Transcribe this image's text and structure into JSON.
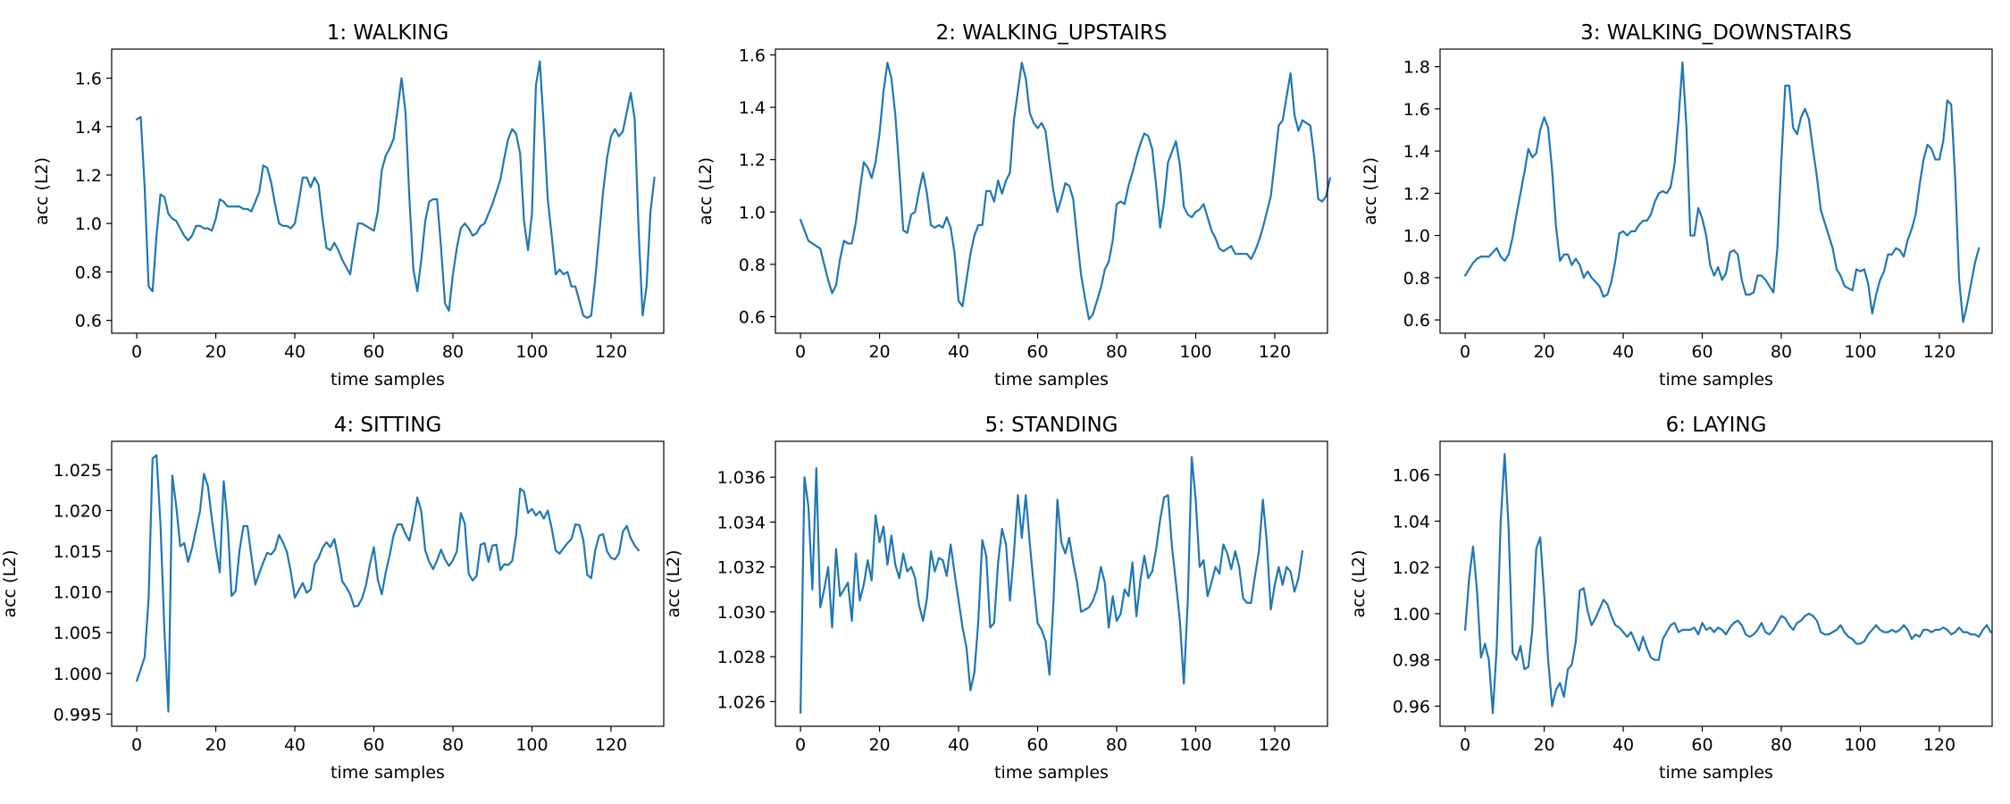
{
  "figure": {
    "line_color": "#1f77b4",
    "background": "#ffffff"
  },
  "chart_data": [
    {
      "type": "line",
      "title": "1: WALKING",
      "xlabel": "time samples",
      "ylabel": "acc (L2)",
      "xlim": [
        -6.35,
        133.35
      ],
      "ylim": [
        0.547,
        1.72
      ],
      "xticks": [
        0,
        20,
        40,
        60,
        80,
        100,
        120
      ],
      "yticks": [
        0.6,
        0.8,
        1.0,
        1.2,
        1.4,
        1.6
      ],
      "ytick_labels": [
        "0.6",
        "0.8",
        "1.0",
        "1.2",
        "1.4",
        "1.6"
      ],
      "grid": false,
      "x_start": 0,
      "values": [
        1.43,
        1.44,
        1.15,
        0.74,
        0.72,
        0.95,
        1.12,
        1.11,
        1.04,
        1.02,
        1.01,
        0.98,
        0.95,
        0.93,
        0.95,
        0.99,
        0.99,
        0.98,
        0.98,
        0.97,
        1.02,
        1.1,
        1.09,
        1.07,
        1.07,
        1.07,
        1.07,
        1.06,
        1.06,
        1.05,
        1.09,
        1.13,
        1.24,
        1.23,
        1.17,
        1.08,
        1.0,
        0.99,
        0.99,
        0.98,
        1.0,
        1.09,
        1.19,
        1.19,
        1.15,
        1.19,
        1.16,
        1.02,
        0.9,
        0.89,
        0.92,
        0.89,
        0.85,
        0.82,
        0.79,
        0.9,
        1.0,
        1.0,
        0.99,
        0.98,
        0.97,
        1.05,
        1.22,
        1.28,
        1.31,
        1.35,
        1.47,
        1.6,
        1.46,
        1.1,
        0.81,
        0.72,
        0.85,
        1.01,
        1.09,
        1.1,
        1.1,
        0.9,
        0.67,
        0.64,
        0.79,
        0.9,
        0.98,
        1.0,
        0.98,
        0.95,
        0.96,
        0.99,
        1.0,
        1.04,
        1.08,
        1.13,
        1.18,
        1.27,
        1.35,
        1.39,
        1.37,
        1.29,
        1.01,
        0.89,
        1.04,
        1.57,
        1.67,
        1.4,
        1.1,
        0.95,
        0.79,
        0.81,
        0.79,
        0.8,
        0.74,
        0.74,
        0.68,
        0.62,
        0.61,
        0.62,
        0.77,
        0.95,
        1.13,
        1.27,
        1.36,
        1.39,
        1.36,
        1.38,
        1.46,
        1.54,
        1.43,
        0.97,
        0.62,
        0.74,
        1.05,
        1.19
      ]
    },
    {
      "type": "line",
      "title": "2: WALKING_UPSTAIRS",
      "xlabel": "time samples",
      "ylabel": "acc (L2)",
      "xlim": [
        -6.35,
        133.35
      ],
      "ylim": [
        0.537,
        1.622
      ],
      "xticks": [
        0,
        20,
        40,
        60,
        80,
        100,
        120
      ],
      "yticks": [
        0.6,
        0.8,
        1.0,
        1.2,
        1.4,
        1.6
      ],
      "ytick_labels": [
        "0.6",
        "0.8",
        "1.0",
        "1.2",
        "1.4",
        "1.6"
      ],
      "grid": false,
      "x_start": 0,
      "values": [
        0.97,
        0.93,
        0.89,
        0.88,
        0.87,
        0.86,
        0.8,
        0.74,
        0.69,
        0.72,
        0.82,
        0.89,
        0.88,
        0.88,
        0.96,
        1.08,
        1.19,
        1.17,
        1.13,
        1.19,
        1.3,
        1.46,
        1.57,
        1.51,
        1.37,
        1.16,
        0.93,
        0.92,
        0.99,
        1.0,
        1.08,
        1.15,
        1.07,
        0.95,
        0.94,
        0.95,
        0.94,
        0.98,
        0.94,
        0.84,
        0.66,
        0.64,
        0.74,
        0.84,
        0.91,
        0.95,
        0.95,
        1.08,
        1.08,
        1.04,
        1.12,
        1.07,
        1.12,
        1.15,
        1.35,
        1.46,
        1.57,
        1.51,
        1.38,
        1.34,
        1.32,
        1.34,
        1.31,
        1.19,
        1.08,
        1.0,
        1.05,
        1.11,
        1.1,
        1.05,
        0.9,
        0.76,
        0.67,
        0.59,
        0.61,
        0.66,
        0.71,
        0.78,
        0.81,
        0.89,
        1.03,
        1.04,
        1.03,
        1.1,
        1.15,
        1.21,
        1.26,
        1.3,
        1.29,
        1.24,
        1.1,
        0.94,
        1.04,
        1.19,
        1.23,
        1.27,
        1.18,
        1.02,
        0.99,
        0.98,
        1.0,
        1.01,
        1.03,
        0.98,
        0.93,
        0.9,
        0.86,
        0.85,
        0.86,
        0.87,
        0.84,
        0.84,
        0.84,
        0.84,
        0.82,
        0.85,
        0.89,
        0.94,
        1.0,
        1.06,
        1.19,
        1.33,
        1.35,
        1.44,
        1.53,
        1.37,
        1.31,
        1.35,
        1.34,
        1.33,
        1.21,
        1.05,
        1.04,
        1.06,
        1.13
      ]
    },
    {
      "type": "line",
      "title": "3: WALKING_DOWNSTAIRS",
      "xlabel": "time samples",
      "ylabel": "acc (L2)",
      "xlim": [
        -6.35,
        133.35
      ],
      "ylim": [
        0.537,
        1.883
      ],
      "xticks": [
        0,
        20,
        40,
        60,
        80,
        100,
        120
      ],
      "yticks": [
        0.6,
        0.8,
        1.0,
        1.2,
        1.4,
        1.6,
        1.8
      ],
      "ytick_labels": [
        "0.6",
        "0.8",
        "1.0",
        "1.2",
        "1.4",
        "1.6",
        "1.8"
      ],
      "grid": false,
      "x_start": 0,
      "values": [
        0.81,
        0.84,
        0.87,
        0.89,
        0.9,
        0.9,
        0.9,
        0.92,
        0.94,
        0.9,
        0.88,
        0.91,
        0.99,
        1.1,
        1.2,
        1.3,
        1.41,
        1.37,
        1.39,
        1.5,
        1.56,
        1.51,
        1.31,
        1.04,
        0.88,
        0.91,
        0.91,
        0.86,
        0.89,
        0.86,
        0.8,
        0.83,
        0.8,
        0.78,
        0.76,
        0.71,
        0.72,
        0.78,
        0.88,
        1.01,
        1.02,
        1.0,
        1.02,
        1.02,
        1.05,
        1.07,
        1.07,
        1.1,
        1.16,
        1.2,
        1.21,
        1.2,
        1.23,
        1.34,
        1.55,
        1.82,
        1.51,
        1.0,
        1.0,
        1.13,
        1.08,
        1.0,
        0.86,
        0.81,
        0.85,
        0.79,
        0.82,
        0.92,
        0.93,
        0.91,
        0.79,
        0.72,
        0.72,
        0.73,
        0.81,
        0.81,
        0.79,
        0.76,
        0.73,
        0.94,
        1.35,
        1.71,
        1.71,
        1.51,
        1.48,
        1.56,
        1.6,
        1.55,
        1.41,
        1.28,
        1.12,
        1.06,
        1.0,
        0.94,
        0.84,
        0.81,
        0.76,
        0.75,
        0.74,
        0.84,
        0.83,
        0.84,
        0.77,
        0.63,
        0.72,
        0.79,
        0.83,
        0.91,
        0.91,
        0.94,
        0.93,
        0.9,
        0.98,
        1.03,
        1.1,
        1.24,
        1.36,
        1.43,
        1.41,
        1.36,
        1.36,
        1.45,
        1.64,
        1.62,
        1.27,
        0.79,
        0.59,
        0.67,
        0.77,
        0.87,
        0.94
      ]
    },
    {
      "type": "line",
      "title": "4: SITTING",
      "xlabel": "time samples",
      "ylabel": "acc (L2)",
      "xlim": [
        -6.35,
        133.35
      ],
      "ylim": [
        0.9935,
        1.0285
      ],
      "xticks": [
        0,
        20,
        40,
        60,
        80,
        100,
        120
      ],
      "yticks": [
        0.995,
        1.0,
        1.005,
        1.01,
        1.015,
        1.02,
        1.025
      ],
      "ytick_labels": [
        "0.995",
        "1.000",
        "1.005",
        "1.010",
        "1.015",
        "1.020",
        "1.025"
      ],
      "grid": false,
      "x_start": 0,
      "values": [
        0.9991,
        1.0005,
        1.002,
        1.0092,
        1.0264,
        1.0268,
        1.0183,
        1.0053,
        0.9953,
        1.0243,
        1.0205,
        1.0156,
        1.016,
        1.0137,
        1.0154,
        1.0177,
        1.0199,
        1.0245,
        1.023,
        1.019,
        1.0154,
        1.0124,
        1.0236,
        1.0185,
        1.0095,
        1.0101,
        1.0151,
        1.0181,
        1.0181,
        1.0144,
        1.0109,
        1.0123,
        1.0136,
        1.0148,
        1.0146,
        1.0152,
        1.017,
        1.0161,
        1.0149,
        1.0124,
        1.0093,
        1.0102,
        1.0111,
        1.0099,
        1.0103,
        1.0134,
        1.0142,
        1.0154,
        1.0161,
        1.0155,
        1.0165,
        1.0141,
        1.0113,
        1.0106,
        1.0097,
        1.0082,
        1.0083,
        1.0092,
        1.0108,
        1.0134,
        1.0155,
        1.0115,
        1.0097,
        1.0124,
        1.0145,
        1.017,
        1.0183,
        1.0183,
        1.0171,
        1.0163,
        1.0187,
        1.0216,
        1.0199,
        1.0151,
        1.0137,
        1.0128,
        1.0139,
        1.0152,
        1.014,
        1.0132,
        1.0139,
        1.015,
        1.0197,
        1.0184,
        1.0122,
        1.0114,
        1.012,
        1.0158,
        1.016,
        1.0137,
        1.0157,
        1.0158,
        1.0127,
        1.0134,
        1.0133,
        1.0138,
        1.017,
        1.0227,
        1.0223,
        1.0197,
        1.0202,
        1.0194,
        1.0199,
        1.019,
        1.02,
        1.0178,
        1.0151,
        1.0147,
        1.0154,
        1.016,
        1.0165,
        1.0183,
        1.0182,
        1.0164,
        1.0121,
        1.0117,
        1.0151,
        1.0169,
        1.0171,
        1.015,
        1.0142,
        1.014,
        1.0147,
        1.0174,
        1.0181,
        1.0166,
        1.0157,
        1.0151
      ]
    },
    {
      "type": "line",
      "title": "5: STANDING",
      "xlabel": "time samples",
      "ylabel": "acc (L2)",
      "xlim": [
        -6.35,
        133.35
      ],
      "ylim": [
        1.0249,
        1.0376
      ],
      "xticks": [
        0,
        20,
        40,
        60,
        80,
        100,
        120
      ],
      "yticks": [
        1.026,
        1.028,
        1.03,
        1.032,
        1.034,
        1.036
      ],
      "ytick_labels": [
        "1.026",
        "1.028",
        "1.030",
        "1.032",
        "1.034",
        "1.036"
      ],
      "grid": false,
      "x_start": 0,
      "values": [
        1.0255,
        1.036,
        1.0347,
        1.031,
        1.0364,
        1.0302,
        1.031,
        1.032,
        1.0293,
        1.0328,
        1.0307,
        1.031,
        1.0313,
        1.0296,
        1.0326,
        1.0305,
        1.0312,
        1.0323,
        1.0314,
        1.0343,
        1.0331,
        1.0338,
        1.0321,
        1.0334,
        1.0321,
        1.0315,
        1.0326,
        1.0318,
        1.032,
        1.0315,
        1.0303,
        1.0296,
        1.0306,
        1.0327,
        1.0318,
        1.0324,
        1.0323,
        1.0316,
        1.033,
        1.0317,
        1.0305,
        1.0293,
        1.0284,
        1.0265,
        1.0273,
        1.0296,
        1.0332,
        1.0325,
        1.0293,
        1.0295,
        1.0322,
        1.0337,
        1.033,
        1.0305,
        1.0326,
        1.0352,
        1.0333,
        1.0352,
        1.0331,
        1.0312,
        1.0295,
        1.0292,
        1.0287,
        1.0272,
        1.0304,
        1.035,
        1.0331,
        1.0326,
        1.0333,
        1.0322,
        1.0313,
        1.03,
        1.0301,
        1.0302,
        1.0305,
        1.031,
        1.032,
        1.0313,
        1.0293,
        1.0307,
        1.0296,
        1.0299,
        1.031,
        1.0307,
        1.0322,
        1.0298,
        1.0314,
        1.0325,
        1.0315,
        1.0318,
        1.0328,
        1.0341,
        1.0351,
        1.0352,
        1.0329,
        1.0313,
        1.0296,
        1.0268,
        1.0305,
        1.0369,
        1.035,
        1.032,
        1.0323,
        1.0307,
        1.0313,
        1.032,
        1.0317,
        1.033,
        1.0326,
        1.0319,
        1.0327,
        1.032,
        1.0306,
        1.0304,
        1.0304,
        1.0316,
        1.0327,
        1.035,
        1.0331,
        1.0301,
        1.0312,
        1.032,
        1.0312,
        1.032,
        1.0318,
        1.0309,
        1.0315,
        1.0327
      ]
    },
    {
      "type": "line",
      "title": "6: LAYING",
      "xlabel": "time samples",
      "ylabel": "acc (L2)",
      "xlim": [
        -6.35,
        133.35
      ],
      "ylim": [
        0.9513,
        1.0745
      ],
      "xticks": [
        0,
        20,
        40,
        60,
        80,
        100,
        120
      ],
      "yticks": [
        0.96,
        0.98,
        1.0,
        1.02,
        1.04,
        1.06
      ],
      "ytick_labels": [
        "0.96",
        "0.98",
        "1.00",
        "1.02",
        "1.04",
        "1.06"
      ],
      "grid": false,
      "x_start": 0,
      "values": [
        0.993,
        1.015,
        1.029,
        1.01,
        0.981,
        0.987,
        0.98,
        0.957,
        0.986,
        1.04,
        1.069,
        1.037,
        0.983,
        0.98,
        0.986,
        0.976,
        0.977,
        0.993,
        1.028,
        1.033,
        1.008,
        0.98,
        0.96,
        0.967,
        0.97,
        0.964,
        0.976,
        0.978,
        0.988,
        1.01,
        1.011,
        1.001,
        0.995,
        0.998,
        1.002,
        1.006,
        1.004,
        0.999,
        0.995,
        0.994,
        0.992,
        0.99,
        0.992,
        0.988,
        0.984,
        0.99,
        0.985,
        0.981,
        0.98,
        0.98,
        0.989,
        0.992,
        0.995,
        0.996,
        0.992,
        0.993,
        0.993,
        0.993,
        0.994,
        0.991,
        0.996,
        0.993,
        0.994,
        0.992,
        0.994,
        0.993,
        0.991,
        0.994,
        0.996,
        0.997,
        0.995,
        0.991,
        0.99,
        0.991,
        0.993,
        0.996,
        0.992,
        0.991,
        0.993,
        0.996,
        0.999,
        0.998,
        0.995,
        0.993,
        0.996,
        0.997,
        0.999,
        1.0,
        0.999,
        0.997,
        0.992,
        0.991,
        0.991,
        0.992,
        0.993,
        0.995,
        0.992,
        0.99,
        0.989,
        0.987,
        0.987,
        0.988,
        0.991,
        0.993,
        0.995,
        0.993,
        0.992,
        0.992,
        0.993,
        0.992,
        0.993,
        0.995,
        0.993,
        0.989,
        0.991,
        0.99,
        0.993,
        0.993,
        0.992,
        0.993,
        0.993,
        0.994,
        0.993,
        0.991,
        0.992,
        0.994,
        0.992,
        0.992,
        0.991,
        0.991,
        0.99,
        0.993,
        0.995,
        0.992
      ]
    }
  ]
}
